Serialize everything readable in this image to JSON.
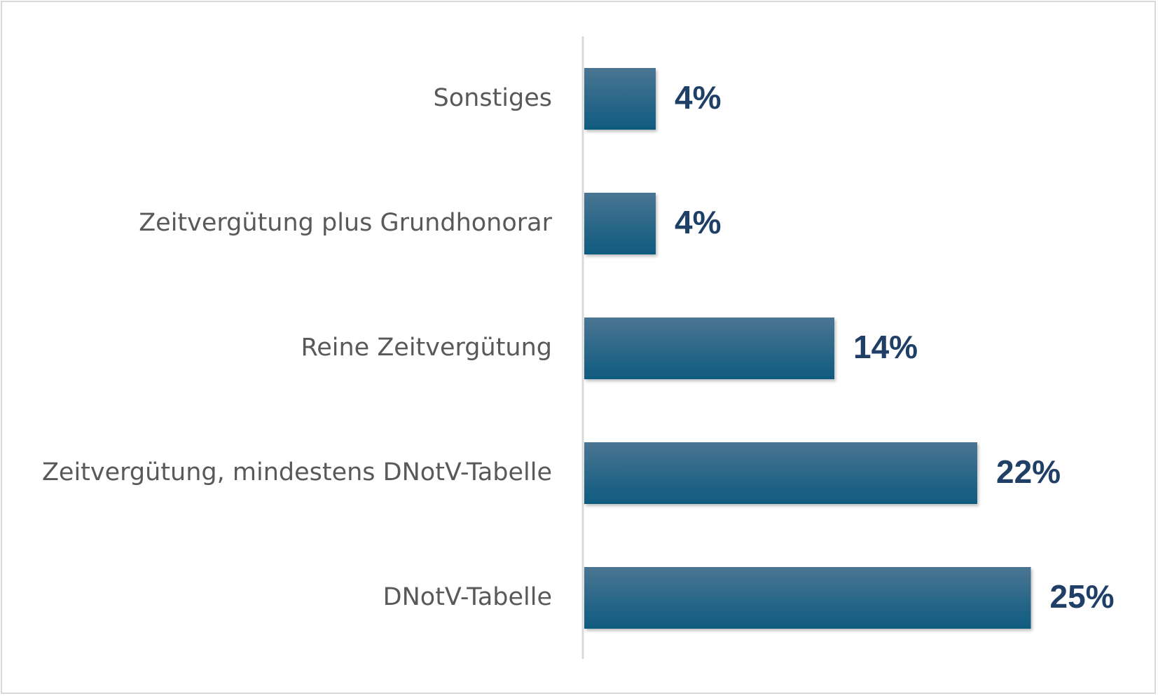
{
  "colors": {
    "bar_top": "#4a7592",
    "bar_bottom": "#0f5b80",
    "value_label": "#1f3f66",
    "category_label": "#595959",
    "axis": "#d9d9d9",
    "frame": "#d9d9d9"
  },
  "chart_data": {
    "type": "bar",
    "orientation": "horizontal",
    "categories": [
      "Sonstiges",
      "Zeitvergütung plus Grundhonorar",
      "Reine Zeitvergütung",
      "Zeitvergütung, mindestens DNotV-Tabelle",
      "DNotV-Tabelle"
    ],
    "values": [
      4,
      4,
      14,
      22,
      25
    ],
    "value_labels": [
      "4%",
      "4%",
      "14%",
      "22%",
      "25%"
    ],
    "unit": "%",
    "xlim": [
      0,
      25
    ],
    "grid": false,
    "legend": "none"
  }
}
